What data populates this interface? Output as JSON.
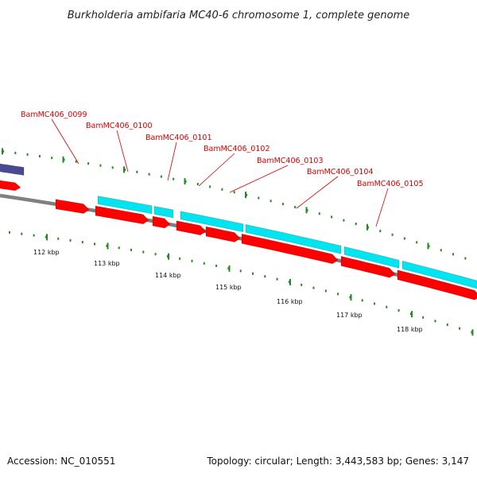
{
  "title": "Burkholderia ambifaria MC40-6 chromosome 1, complete genome",
  "colors": {
    "forward_gene": "#00e5f0",
    "reverse_gene": "#ff0000",
    "label": "#d40000",
    "backbone": "#808080",
    "ticks": "#228b22",
    "other_feature": "#4a4a90"
  },
  "gene_labels": [
    "BamMC406_0099",
    "BamMC406_0100",
    "BamMC406_0101",
    "BamMC406_0102",
    "BamMC406_0103",
    "BamMC406_0104",
    "BamMC406_0105"
  ],
  "kbp_labels": [
    "112 kbp",
    "113 kbp",
    "114 kbp",
    "115 kbp",
    "116 kbp",
    "117 kbp",
    "118 kbp"
  ],
  "footer": {
    "accession": "Accession: NC_010551",
    "topology": "Topology: circular; Length: 3,443,583 bp; Genes: 3,147"
  }
}
